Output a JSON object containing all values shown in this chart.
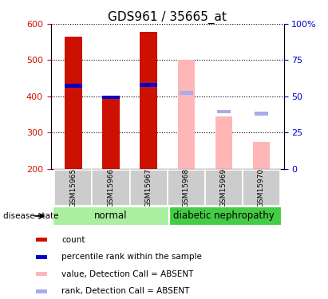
{
  "title": "GDS961 / 35665_at",
  "samples": [
    "GSM15965",
    "GSM15966",
    "GSM15967",
    "GSM15968",
    "GSM15969",
    "GSM15970"
  ],
  "bar_bottom": 200,
  "count_values": [
    565,
    400,
    578,
    null,
    null,
    null
  ],
  "count_color": "#cc1100",
  "absent_value_values": [
    null,
    null,
    null,
    500,
    345,
    275
  ],
  "absent_value_color": "#ffb6b6",
  "percentile_rank_values": [
    430,
    398,
    432,
    null,
    null,
    null
  ],
  "percentile_rank_color": "#0000cc",
  "absent_rank_values": [
    null,
    null,
    null,
    410,
    358,
    352
  ],
  "absent_rank_color": "#aaaaee",
  "ylim_left": [
    200,
    600
  ],
  "ylim_right": [
    0,
    100
  ],
  "yticks_left": [
    200,
    300,
    400,
    500,
    600
  ],
  "yticks_right": [
    0,
    25,
    50,
    75,
    100
  ],
  "group_label_normal": "normal",
  "group_label_diabetic": "diabetic nephropathy",
  "disease_state_label": "disease state",
  "normal_color": "#aaeea0",
  "diabetic_color": "#44cc44",
  "sample_bg_color": "#cccccc",
  "legend_items": [
    {
      "label": "count",
      "color": "#cc1100"
    },
    {
      "label": "percentile rank within the sample",
      "color": "#0000cc"
    },
    {
      "label": "value, Detection Call = ABSENT",
      "color": "#ffb6b6"
    },
    {
      "label": "rank, Detection Call = ABSENT",
      "color": "#aaaaee"
    }
  ],
  "title_fontsize": 11,
  "tick_fontsize": 8,
  "label_fontsize": 8,
  "bar_width": 0.45
}
